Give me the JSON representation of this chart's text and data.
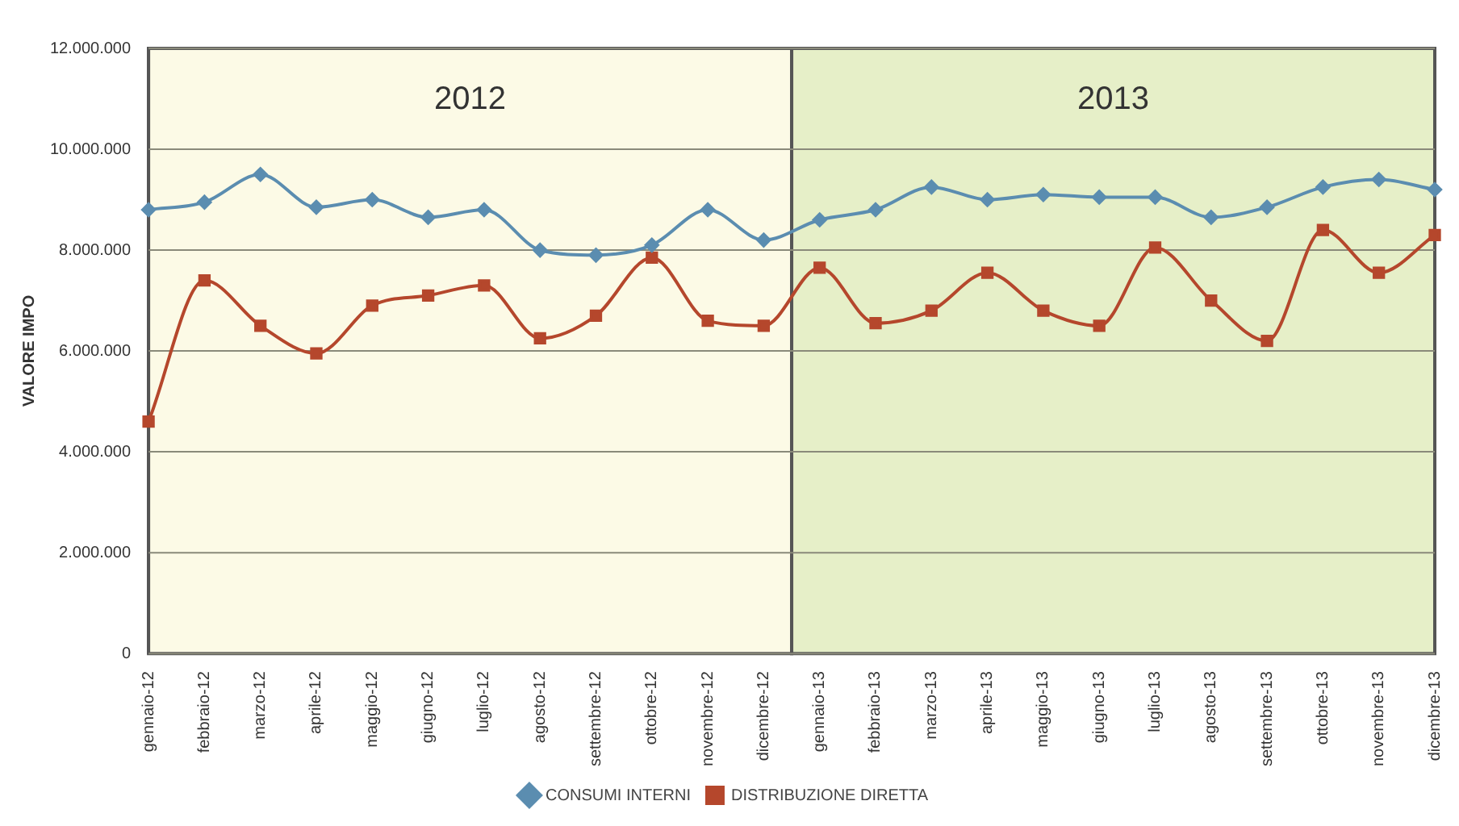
{
  "chart_data": {
    "type": "line",
    "ylabel": "VALORE IMPO",
    "categories": [
      "gennaio-12",
      "febbraio-12",
      "marzo-12",
      "aprile-12",
      "maggio-12",
      "giugno-12",
      "luglio-12",
      "agosto-12",
      "settembre-12",
      "ottobre-12",
      "novembre-12",
      "dicembre-12",
      "gennaio-13",
      "febbraio-13",
      "marzo-13",
      "aprile-13",
      "maggio-13",
      "giugno-13",
      "luglio-13",
      "agosto-13",
      "settembre-13",
      "ottobre-13",
      "novembre-13",
      "dicembre-13"
    ],
    "series": [
      {
        "name": "CONSUMI INTERNI",
        "color": "#5b8db0",
        "marker": "diamond",
        "values": [
          8800000,
          8950000,
          9500000,
          8850000,
          9000000,
          8650000,
          8800000,
          8000000,
          7900000,
          8100000,
          8800000,
          8200000,
          8600000,
          8800000,
          9250000,
          9000000,
          9100000,
          9050000,
          9050000,
          8650000,
          8850000,
          9250000,
          9400000,
          9200000
        ]
      },
      {
        "name": "DISTRIBUZIONE DIRETTA",
        "color": "#b5472c",
        "marker": "square",
        "values": [
          4600000,
          7400000,
          6500000,
          5950000,
          6900000,
          7100000,
          7300000,
          6250000,
          6700000,
          7850000,
          6600000,
          6500000,
          7650000,
          6550000,
          6800000,
          7550000,
          6800000,
          6500000,
          8050000,
          7000000,
          6200000,
          8400000,
          7550000,
          8300000
        ]
      }
    ],
    "ylim": [
      0,
      12000000
    ],
    "yticks": [
      {
        "value": 0,
        "label": "0"
      },
      {
        "value": 2000000,
        "label": "2.000.000"
      },
      {
        "value": 4000000,
        "label": "4.000.000"
      },
      {
        "value": 6000000,
        "label": "6.000.000"
      },
      {
        "value": 8000000,
        "label": "8.000.000"
      },
      {
        "value": 10000000,
        "label": "10.000.000"
      },
      {
        "value": 12000000,
        "label": "12.000.000"
      }
    ],
    "bands": [
      {
        "axis": "x",
        "from": "gennaio-12",
        "to": "dicembre-12",
        "label": "2012",
        "color": "#fcfae6"
      },
      {
        "axis": "x",
        "from": "gennaio-13",
        "to": "dicembre-13",
        "label": "2013",
        "color": "#e6efc8"
      }
    ],
    "grid": "y",
    "legend": "bottom",
    "line_style": "solid"
  }
}
